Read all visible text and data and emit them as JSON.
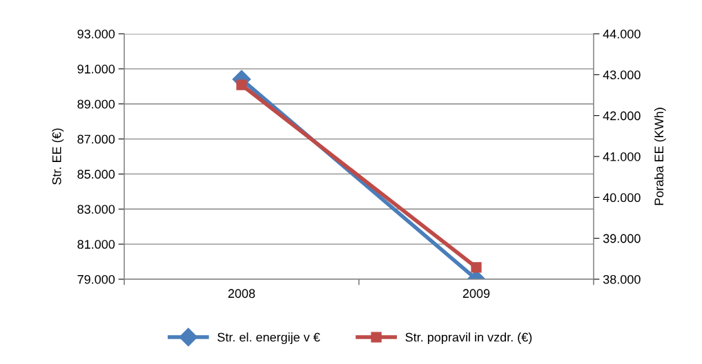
{
  "chart_data": {
    "type": "line",
    "ylabel": "Str. EE (€)",
    "y2label": "Poraba EE (KWh)",
    "categories": [
      "2008",
      "2009"
    ],
    "series": [
      {
        "name": "Str. el. energije v €",
        "color": "#4a7ebb",
        "values": [
          90400,
          79000
        ],
        "marker": "diamond"
      },
      {
        "name": "Str. popravil in vzdr. (€)",
        "color": "#be4b48",
        "values": [
          42750,
          38290
        ],
        "marker": "square",
        "axis": "y2"
      }
    ],
    "ylim": [
      79000,
      93000
    ],
    "yticks": [
      {
        "value": 79000,
        "label": "79.000"
      },
      {
        "value": 81000,
        "label": "81.000"
      },
      {
        "value": 83000,
        "label": "83.000"
      },
      {
        "value": 85000,
        "label": "85.000"
      },
      {
        "value": 87000,
        "label": "87.000"
      },
      {
        "value": 89000,
        "label": "89.000"
      },
      {
        "value": 91000,
        "label": "91.000"
      },
      {
        "value": 93000,
        "label": "93.000"
      }
    ],
    "y2lim": [
      38000,
      44000
    ],
    "y2ticks": [
      {
        "value": 38000,
        "label": "38.000"
      },
      {
        "value": 39000,
        "label": "39.000"
      },
      {
        "value": 40000,
        "label": "40.000"
      },
      {
        "value": 41000,
        "label": "41.000"
      },
      {
        "value": 42000,
        "label": "42.000"
      },
      {
        "value": 43000,
        "label": "43.000"
      },
      {
        "value": 44000,
        "label": "44.000"
      }
    ],
    "grid": "y",
    "legend": "bottom"
  }
}
